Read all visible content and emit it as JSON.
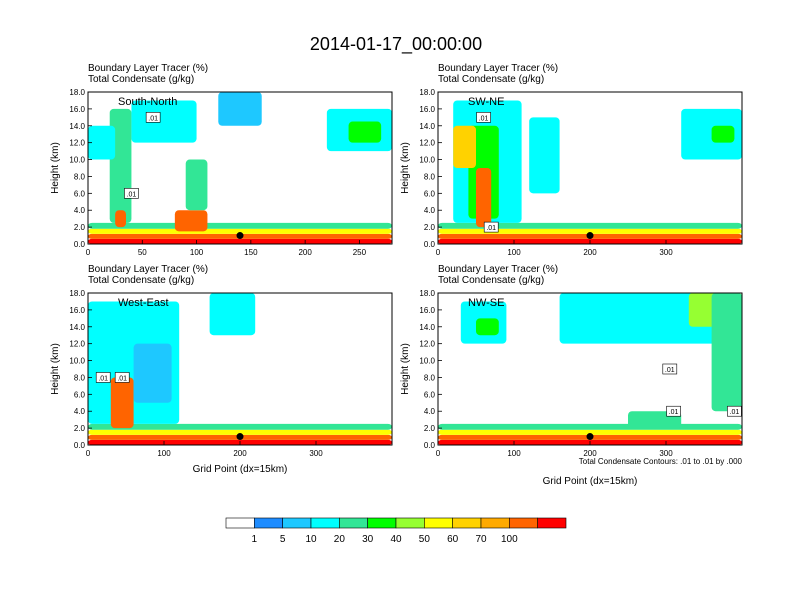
{
  "title": "2014-01-17_00:00:00",
  "colors": {
    "levels": [
      "#ffffff",
      "#1e8cff",
      "#1ec8ff",
      "#00ffff",
      "#32e696",
      "#00ff00",
      "#96ff32",
      "#ffff00",
      "#ffd200",
      "#ffaa00",
      "#ff6400",
      "#ff0000"
    ]
  },
  "chart_data": [
    {
      "type": "heatmap",
      "title_lines": [
        "Boundary Layer Tracer   (%)",
        "Total Condensate   (g/kg)"
      ],
      "label": "South-North",
      "xlabel": "",
      "ylabel": "Height (km)",
      "xlim": [
        0,
        280
      ],
      "xticks": [
        0,
        50,
        100,
        150,
        200,
        250
      ],
      "ylim": [
        0,
        18
      ],
      "yticks": [
        "0.0",
        "2.0",
        "4.0",
        "6.0",
        "8.0",
        "10.0",
        "12.0",
        "14.0",
        "16.0",
        "18.0"
      ],
      "marker": {
        "x": 140,
        "y": 1
      },
      "contour_labels": [
        {
          "x": 40,
          "y": 6,
          "text": ".01"
        },
        {
          "x": 60,
          "y": 15,
          "text": ".01"
        }
      ],
      "regions": [
        {
          "x0": 0,
          "x1": 280,
          "y0": 0,
          "y1": 0.6,
          "level": 11
        },
        {
          "x0": 0,
          "x1": 280,
          "y0": 0.6,
          "y1": 1.2,
          "level": 10
        },
        {
          "x0": 0,
          "x1": 280,
          "y0": 1.2,
          "y1": 1.8,
          "level": 7
        },
        {
          "x0": 0,
          "x1": 280,
          "y0": 1.8,
          "y1": 2.5,
          "level": 4
        },
        {
          "x0": 20,
          "x1": 40,
          "y0": 2.5,
          "y1": 16,
          "level": 4
        },
        {
          "x0": 25,
          "x1": 35,
          "y0": 2,
          "y1": 4,
          "level": 10
        },
        {
          "x0": 80,
          "x1": 110,
          "y0": 1.5,
          "y1": 4,
          "level": 10
        },
        {
          "x0": 90,
          "x1": 110,
          "y0": 4,
          "y1": 10,
          "level": 4
        },
        {
          "x0": 0,
          "x1": 25,
          "y0": 10,
          "y1": 14,
          "level": 3
        },
        {
          "x0": 40,
          "x1": 100,
          "y0": 12,
          "y1": 17,
          "level": 3
        },
        {
          "x0": 120,
          "x1": 160,
          "y0": 14,
          "y1": 18,
          "level": 2
        },
        {
          "x0": 220,
          "x1": 280,
          "y0": 11,
          "y1": 16,
          "level": 3
        },
        {
          "x0": 240,
          "x1": 270,
          "y0": 12,
          "y1": 14.5,
          "level": 5
        }
      ]
    },
    {
      "type": "heatmap",
      "title_lines": [
        "Boundary Layer Tracer   (%)",
        "Total Condensate   (g/kg)"
      ],
      "label": "SW-NE",
      "xlabel": "",
      "ylabel": "Height (km)",
      "xlim": [
        0,
        400
      ],
      "xticks": [
        0,
        100,
        200,
        300
      ],
      "ylim": [
        0,
        18
      ],
      "yticks": [
        "0.0",
        "2.0",
        "4.0",
        "6.0",
        "8.0",
        "10.0",
        "12.0",
        "14.0",
        "16.0",
        "18.0"
      ],
      "marker": {
        "x": 200,
        "y": 1
      },
      "contour_labels": [
        {
          "x": 70,
          "y": 2,
          "text": ".01"
        },
        {
          "x": 60,
          "y": 15,
          "text": ".01"
        }
      ],
      "regions": [
        {
          "x0": 0,
          "x1": 400,
          "y0": 0,
          "y1": 0.6,
          "level": 11
        },
        {
          "x0": 0,
          "x1": 400,
          "y0": 0.6,
          "y1": 1.2,
          "level": 10
        },
        {
          "x0": 0,
          "x1": 400,
          "y0": 1.2,
          "y1": 1.8,
          "level": 7
        },
        {
          "x0": 0,
          "x1": 400,
          "y0": 1.8,
          "y1": 2.5,
          "level": 4
        },
        {
          "x0": 20,
          "x1": 110,
          "y0": 2.5,
          "y1": 17,
          "level": 3
        },
        {
          "x0": 40,
          "x1": 80,
          "y0": 3,
          "y1": 14,
          "level": 5
        },
        {
          "x0": 50,
          "x1": 70,
          "y0": 2,
          "y1": 9,
          "level": 10
        },
        {
          "x0": 20,
          "x1": 50,
          "y0": 9,
          "y1": 14,
          "level": 8
        },
        {
          "x0": 120,
          "x1": 160,
          "y0": 6,
          "y1": 15,
          "level": 3
        },
        {
          "x0": 320,
          "x1": 400,
          "y0": 10,
          "y1": 16,
          "level": 3
        },
        {
          "x0": 360,
          "x1": 390,
          "y0": 12,
          "y1": 14,
          "level": 5
        }
      ]
    },
    {
      "type": "heatmap",
      "title_lines": [
        "Boundary Layer Tracer   (%)",
        "Total Condensate   (g/kg)"
      ],
      "label": "West-East",
      "xlabel": "Grid Point (dx=15km)",
      "ylabel": "Height (km)",
      "xlim": [
        0,
        400
      ],
      "xticks": [
        0,
        100,
        200,
        300
      ],
      "ylim": [
        0,
        18
      ],
      "yticks": [
        "0.0",
        "2.0",
        "4.0",
        "6.0",
        "8.0",
        "10.0",
        "12.0",
        "14.0",
        "16.0",
        "18.0"
      ],
      "marker": {
        "x": 200,
        "y": 1
      },
      "contour_labels": [
        {
          "x": 20,
          "y": 8,
          "text": ".01"
        },
        {
          "x": 45,
          "y": 8,
          "text": ".01"
        }
      ],
      "regions": [
        {
          "x0": 0,
          "x1": 400,
          "y0": 0,
          "y1": 0.6,
          "level": 11
        },
        {
          "x0": 0,
          "x1": 400,
          "y0": 0.6,
          "y1": 1.2,
          "level": 10
        },
        {
          "x0": 0,
          "x1": 400,
          "y0": 1.2,
          "y1": 1.8,
          "level": 7
        },
        {
          "x0": 0,
          "x1": 400,
          "y0": 1.8,
          "y1": 2.5,
          "level": 4
        },
        {
          "x0": 0,
          "x1": 120,
          "y0": 2.5,
          "y1": 17,
          "level": 3
        },
        {
          "x0": 30,
          "x1": 60,
          "y0": 2,
          "y1": 8,
          "level": 10
        },
        {
          "x0": 60,
          "x1": 110,
          "y0": 5,
          "y1": 12,
          "level": 2
        },
        {
          "x0": 160,
          "x1": 220,
          "y0": 13,
          "y1": 18,
          "level": 3
        }
      ]
    },
    {
      "type": "heatmap",
      "title_lines": [
        "Boundary Layer Tracer   (%)",
        "Total Condensate   (g/kg)"
      ],
      "label": "NW-SE",
      "xlabel": "Grid Point (dx=15km)",
      "ylabel": "Height (km)",
      "xlim": [
        0,
        400
      ],
      "xticks": [
        0,
        100,
        200,
        300
      ],
      "ylim": [
        0,
        18
      ],
      "yticks": [
        "0.0",
        "2.0",
        "4.0",
        "6.0",
        "8.0",
        "10.0",
        "12.0",
        "14.0",
        "16.0",
        "18.0"
      ],
      "marker": {
        "x": 200,
        "y": 1
      },
      "contour_labels": [
        {
          "x": 305,
          "y": 9,
          "text": ".01"
        },
        {
          "x": 310,
          "y": 4,
          "text": ".01"
        },
        {
          "x": 390,
          "y": 4,
          "text": ".01"
        }
      ],
      "note": "Total Condensate Contours: .01 to .01 by .000",
      "regions": [
        {
          "x0": 0,
          "x1": 400,
          "y0": 0,
          "y1": 0.6,
          "level": 11
        },
        {
          "x0": 0,
          "x1": 400,
          "y0": 0.6,
          "y1": 1.2,
          "level": 10
        },
        {
          "x0": 0,
          "x1": 400,
          "y0": 1.2,
          "y1": 1.8,
          "level": 7
        },
        {
          "x0": 0,
          "x1": 400,
          "y0": 1.8,
          "y1": 2.5,
          "level": 4
        },
        {
          "x0": 30,
          "x1": 90,
          "y0": 12,
          "y1": 17,
          "level": 3
        },
        {
          "x0": 50,
          "x1": 80,
          "y0": 13,
          "y1": 15,
          "level": 5
        },
        {
          "x0": 160,
          "x1": 400,
          "y0": 12,
          "y1": 18,
          "level": 3
        },
        {
          "x0": 330,
          "x1": 400,
          "y0": 14,
          "y1": 18,
          "level": 6
        },
        {
          "x0": 360,
          "x1": 400,
          "y0": 4,
          "y1": 18,
          "level": 4
        },
        {
          "x0": 250,
          "x1": 320,
          "y0": 2,
          "y1": 4,
          "level": 4
        }
      ]
    }
  ],
  "colorbar": {
    "labels": [
      "1",
      "5",
      "10",
      "20",
      "30",
      "40",
      "50",
      "60",
      "70",
      "100"
    ]
  }
}
